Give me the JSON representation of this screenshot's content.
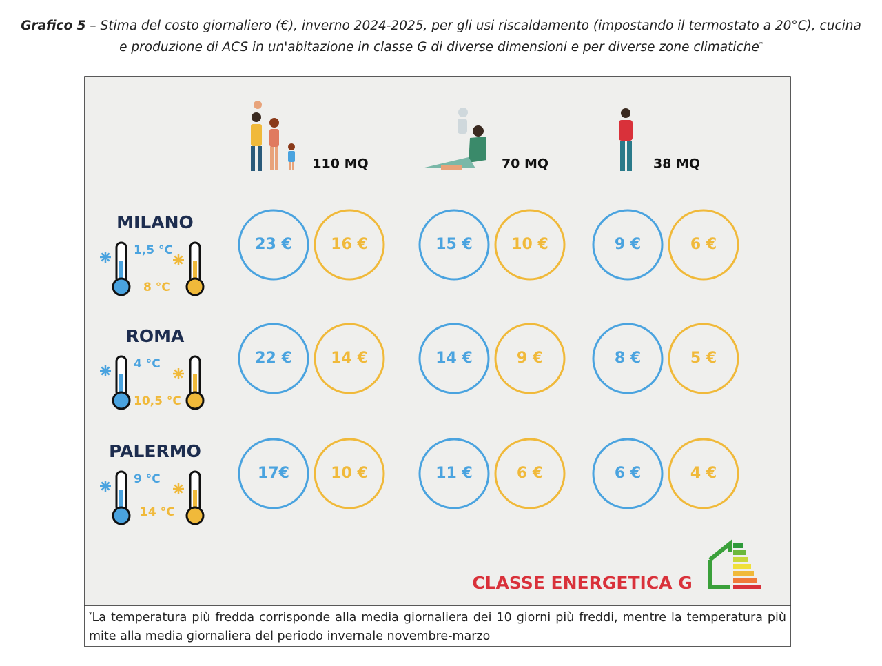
{
  "header": {
    "label": "Grafico 5",
    "title": " – Stima del costo giornaliero (€), inverno 2024-2025, per gli usi riscaldamento (impostando il termostato a 20°C), cucina e produzione di ACS in un'abitazione in classe G di diverse dimensioni e per diverse zone climatiche",
    "note_mark": "*"
  },
  "columns": [
    {
      "label": "110 MQ"
    },
    {
      "label": "70 MQ"
    },
    {
      "label": "38 MQ"
    }
  ],
  "rows": [
    {
      "city": "MILANO",
      "cold_temp": "1,5 °C",
      "mild_temp": "8 °C",
      "costs": [
        {
          "cold": "23 €",
          "mild": "16 €"
        },
        {
          "cold": "15 €",
          "mild": "10 €"
        },
        {
          "cold": "9 €",
          "mild": "6 €"
        }
      ]
    },
    {
      "city": "ROMA",
      "cold_temp": "4 °C",
      "mild_temp": "10,5 °C",
      "costs": [
        {
          "cold": "22 €",
          "mild": "14 €"
        },
        {
          "cold": "14 €",
          "mild": "9 €"
        },
        {
          "cold": "8 €",
          "mild": "5 €"
        }
      ]
    },
    {
      "city": "PALERMO",
      "cold_temp": "9 °C",
      "mild_temp": "14 °C",
      "costs": [
        {
          "cold": "17€",
          "mild": "10 €"
        },
        {
          "cold": "11 €",
          "mild": "6 €"
        },
        {
          "cold": "6 €",
          "mild": "4 €"
        }
      ]
    }
  ],
  "energy_class": "CLASSE ENERGETICA G",
  "footnote": {
    "mark": "*",
    "text": "La temperatura più fredda corrisponde alla media giornaliera dei 10 giorni più freddi, mentre la temperatura più mite alla media giornaliera del periodo invernale novembre-marzo"
  }
}
